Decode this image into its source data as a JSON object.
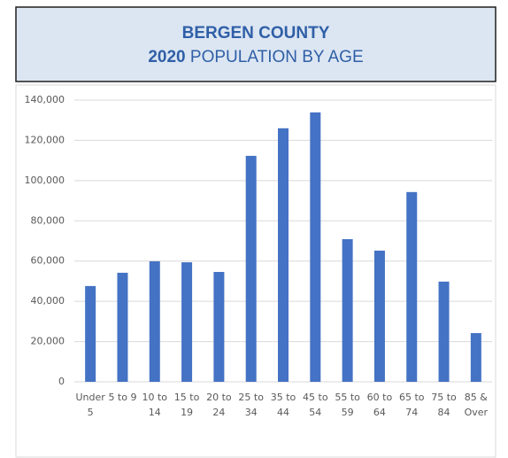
{
  "chart_data": {
    "type": "bar",
    "title": "BERGEN COUNTY",
    "subtitle": [
      "2020",
      "POPULATION BY AGE"
    ],
    "categories": [
      [
        "Under",
        "5"
      ],
      [
        "5 to 9"
      ],
      [
        "10 to",
        "14"
      ],
      [
        "15 to",
        "19"
      ],
      [
        "20 to",
        "24"
      ],
      [
        "25 to",
        "34"
      ],
      [
        "35 to",
        "44"
      ],
      [
        "45 to",
        "54"
      ],
      [
        "55 to",
        "59"
      ],
      [
        "60 to",
        "64"
      ],
      [
        "65 to",
        "74"
      ],
      [
        "75 to",
        "84"
      ],
      [
        "85 &",
        "Over"
      ]
    ],
    "values": [
      47600,
      54200,
      59900,
      59400,
      54600,
      112300,
      126000,
      133900,
      70900,
      65200,
      94300,
      49800,
      24200
    ],
    "color": "#4472c4",
    "ylim": [
      0,
      140000
    ],
    "yticks": [
      0,
      {
        "value": 20000,
        "label": "20,000"
      },
      {
        "value": 40000,
        "label": "40,000"
      },
      {
        "value": 60000,
        "label": "60,000"
      },
      {
        "value": 80000,
        "label": "80,000"
      },
      {
        "value": 100000,
        "label": "100,000"
      },
      {
        "value": 120000,
        "label": "120,000"
      },
      {
        "value": 140000,
        "label": "140,000"
      }
    ],
    "grid": true
  }
}
